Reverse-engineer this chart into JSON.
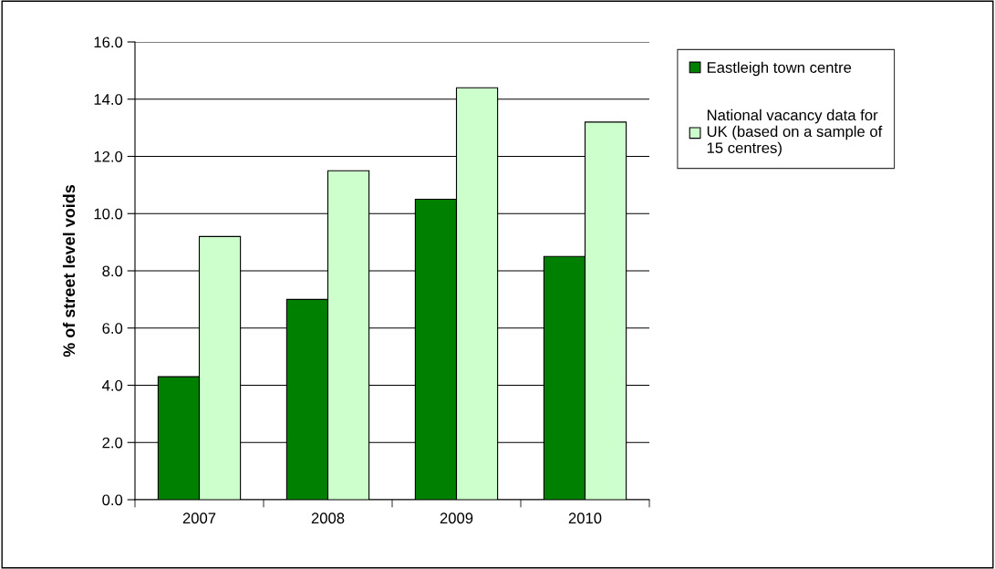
{
  "chart_data": {
    "type": "bar",
    "ylabel": "% of street level voids",
    "categories": [
      "2007",
      "2008",
      "2009",
      "2010"
    ],
    "series": [
      {
        "name": "Eastleigh town centre",
        "color": "#008000",
        "values": [
          4.3,
          7.0,
          10.5,
          8.5
        ]
      },
      {
        "name": "National vacancy data for UK (based on a sample of 15 centres)",
        "color": "#ccffcc",
        "values": [
          9.2,
          11.5,
          14.4,
          13.2
        ]
      }
    ],
    "ylim": [
      0,
      16
    ],
    "yticks": [
      {
        "value": 0,
        "label": "0.0"
      },
      {
        "value": 2,
        "label": "2.0"
      },
      {
        "value": 4,
        "label": "4.0"
      },
      {
        "value": 6,
        "label": "6.0"
      },
      {
        "value": 8,
        "label": "8.0"
      },
      {
        "value": 10,
        "label": "10.0"
      },
      {
        "value": 12,
        "label": "12.0"
      },
      {
        "value": 14,
        "label": "14.0"
      },
      {
        "value": 16,
        "label": "16.0"
      }
    ],
    "grid": "y",
    "legend": "top right"
  }
}
